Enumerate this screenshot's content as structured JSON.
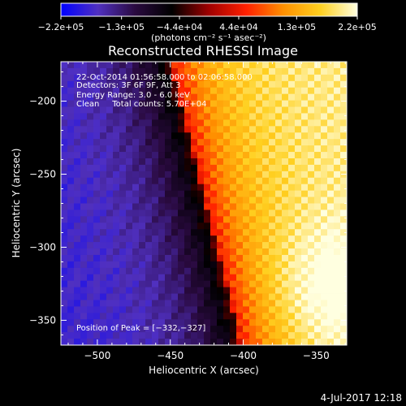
{
  "chart_data": {
    "type": "heatmap",
    "title": "Reconstructed RHESSI Image",
    "xlabel": "Heliocentric X (arcsec)",
    "ylabel": "Heliocentric Y (arcsec)",
    "xlim": [
      -525,
      -329
    ],
    "ylim": [
      -367,
      -173
    ],
    "x_ticks": [
      -500,
      -450,
      -400,
      -350
    ],
    "x_tick_labels": [
      "−500",
      "−450",
      "−400",
      "−350"
    ],
    "y_ticks": [
      -200,
      -250,
      -300,
      -350
    ],
    "y_tick_labels": [
      "−200",
      "−250",
      "−300",
      "−350"
    ],
    "colorbar": {
      "range": [
        -220000,
        220000
      ],
      "ticks": [
        -220000,
        -130000,
        -44000,
        44000,
        130000,
        220000
      ],
      "tick_labels": [
        "−2.2e+05",
        "−1.3e+05",
        "−4.4e+04",
        "4.4e+04",
        "1.3e+05",
        "2.2e+05"
      ],
      "unit_label": "(photons cm⁻² s⁻¹ asec⁻²)",
      "colors": [
        "#0000ff",
        "#5030c0",
        "#2a0a40",
        "#000000",
        "#a00000",
        "#ff2000",
        "#ff9000",
        "#ffd020",
        "#ffffe0"
      ]
    },
    "annotations": [
      "22-Oct-2014 01:56:58.000 to 02:06:58.000",
      "Detectors: 3F 6F 9F, Att 3",
      "Energy Range: 3.0 - 6.0 keV",
      "Clean     Total counts: 5.70E+04"
    ],
    "peak_label": "Position of Peak = [−332,−327]",
    "peak": [
      -332,
      -327
    ],
    "ridge_x_at": {
      "top": -450,
      "bottom": -402
    },
    "vmin": -220000,
    "vmax": 220000
  },
  "footer": {
    "timestamp": "4-Jul-2017 12:18"
  }
}
